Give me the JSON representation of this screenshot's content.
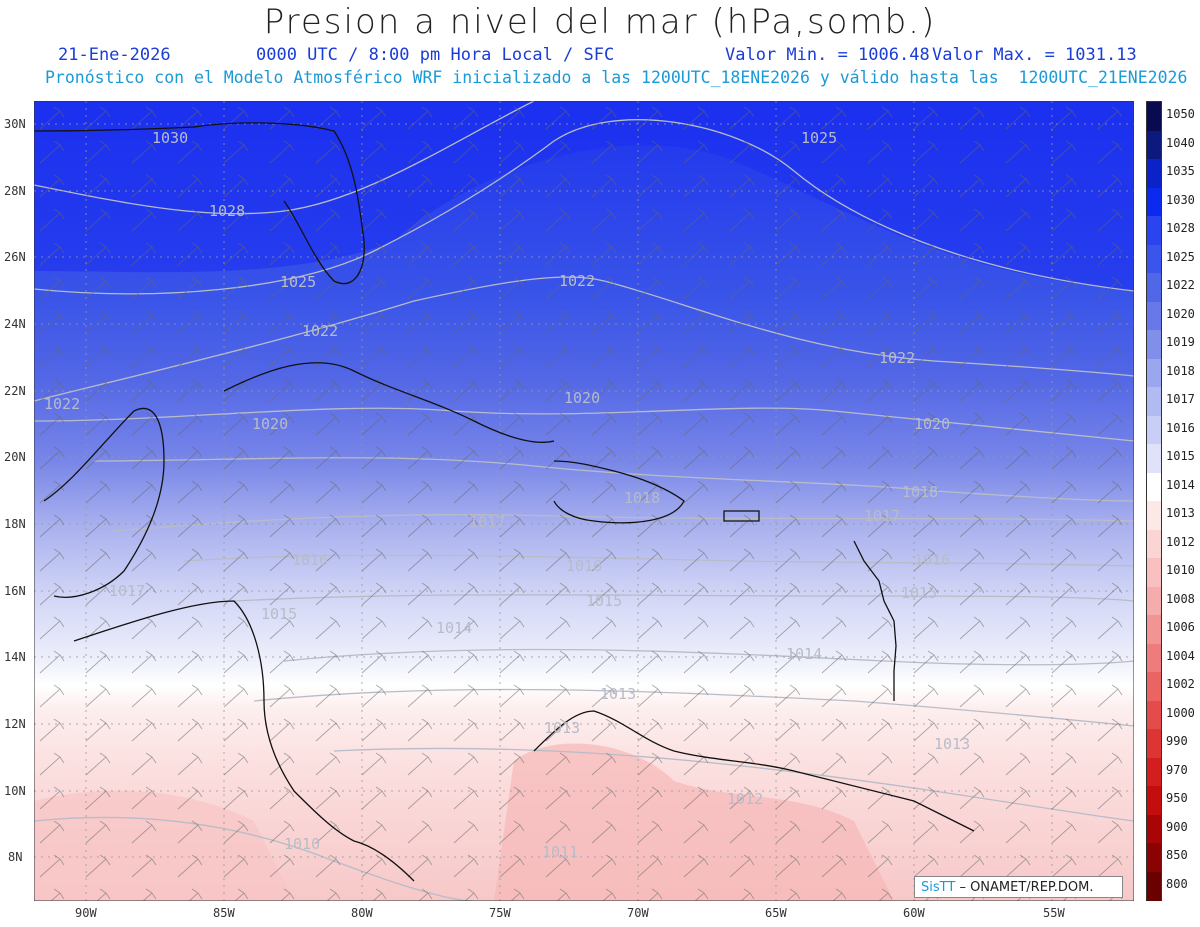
{
  "title": "Presion a nivel del mar (hPa,somb.)",
  "header": {
    "date": "21-Ene-2026",
    "time": "0000 UTC / 8:00 pm Hora Local / SFC",
    "min_label": "Valor Min. = 1006.48",
    "max_label": "Valor Max. = 1031.13",
    "subtitle": "Pronóstico con el Modelo Atmosférico WRF inicializado a las 1200UTC_18ENE2026 y válido hasta las  1200UTC_21ENE2026"
  },
  "axes": {
    "lat_labels": [
      "30N",
      "28N",
      "26N",
      "24N",
      "22N",
      "20N",
      "18N",
      "16N",
      "14N",
      "12N",
      "10N",
      "8N"
    ],
    "lon_labels": [
      "90W",
      "85W",
      "80W",
      "75W",
      "70W",
      "65W",
      "60W",
      "55W"
    ]
  },
  "contour_labels": [
    {
      "text": "1030"
    },
    {
      "text": "1028"
    },
    {
      "text": "1025"
    },
    {
      "text": "1025"
    },
    {
      "text": "1022"
    },
    {
      "text": "1022"
    },
    {
      "text": "1022"
    },
    {
      "text": "1022"
    },
    {
      "text": "1020"
    },
    {
      "text": "1020"
    },
    {
      "text": "1020"
    },
    {
      "text": "1018"
    },
    {
      "text": "1018"
    },
    {
      "text": "1017"
    },
    {
      "text": "1017"
    },
    {
      "text": "1017"
    },
    {
      "text": "1016"
    },
    {
      "text": "1016"
    },
    {
      "text": "1016"
    },
    {
      "text": "1015"
    },
    {
      "text": "1015"
    },
    {
      "text": "1015"
    },
    {
      "text": "1014"
    },
    {
      "text": "1014"
    },
    {
      "text": "1013"
    },
    {
      "text": "1013"
    },
    {
      "text": "1013"
    },
    {
      "text": "1012"
    },
    {
      "text": "1011"
    },
    {
      "text": "1010"
    }
  ],
  "colorbar": {
    "levels": [
      "1050",
      "1040",
      "1035",
      "1030",
      "1028",
      "1025",
      "1022",
      "1020",
      "1019",
      "1018",
      "1017",
      "1016",
      "1015",
      "1014",
      "1013",
      "1012",
      "1010",
      "1008",
      "1006",
      "1004",
      "1002",
      "1000",
      "990",
      "970",
      "950",
      "900",
      "850",
      "800"
    ],
    "colors": [
      "#0a0a50",
      "#0c1a80",
      "#0a22c8",
      "#0a2af0",
      "#2a45f0",
      "#3a55ec",
      "#5068e8",
      "#6878e8",
      "#8090ea",
      "#9aa6ee",
      "#b2baf2",
      "#c8cef6",
      "#dfe2fa",
      "#ffffff",
      "#fde8e8",
      "#fbd4d4",
      "#f8c0c0",
      "#f5acac",
      "#f29494",
      "#ee7c7c",
      "#ea6464",
      "#e44c4c",
      "#dd3434",
      "#d21e1e",
      "#c40e0e",
      "#a80606",
      "#8a0202",
      "#6a0000"
    ]
  },
  "credit": {
    "brand": "SisTT",
    "text": "– ONAMET/REP.DOM."
  },
  "legend_colors": {
    "title": "#222222",
    "header_blue": "#1a3cd8",
    "subtitle_cyan": "#1a9ad8"
  }
}
